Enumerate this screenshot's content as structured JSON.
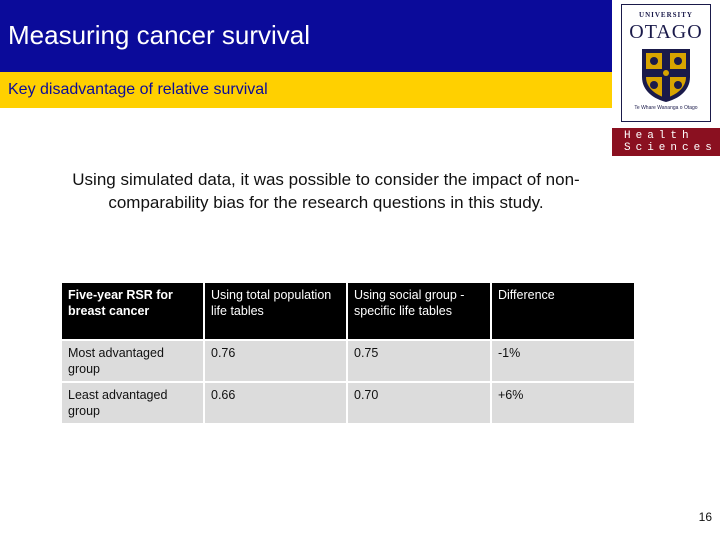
{
  "slide": {
    "title": "Measuring cancer survival",
    "subtitle": "Key disadvantage of relative survival",
    "intro": "Using simulated data, it was possible to consider the impact of non-comparability bias for the research questions in this study.",
    "page_number": "16"
  },
  "logo": {
    "university_line": "UNIVERSITY",
    "otago": "OTAGO",
    "maori_line": "Te Whare Wananga o Otago",
    "health": "Health",
    "sciences": "Sciences"
  },
  "table": {
    "headers": [
      "Five-year RSR for breast cancer",
      "Using total population life tables",
      "Using social group -specific life tables",
      "Difference"
    ],
    "rows": [
      [
        "Most advantaged group",
        "0.76",
        "0.75",
        "-1%"
      ],
      [
        "Least advantaged group",
        "0.66",
        "0.70",
        "+6%"
      ]
    ]
  },
  "colors": {
    "title_bar": "#0b0b9a",
    "subtitle_bar": "#ffd000",
    "health_sciences_box": "#8a1020",
    "table_header": "#000000",
    "table_row": "#dcdcdc"
  }
}
